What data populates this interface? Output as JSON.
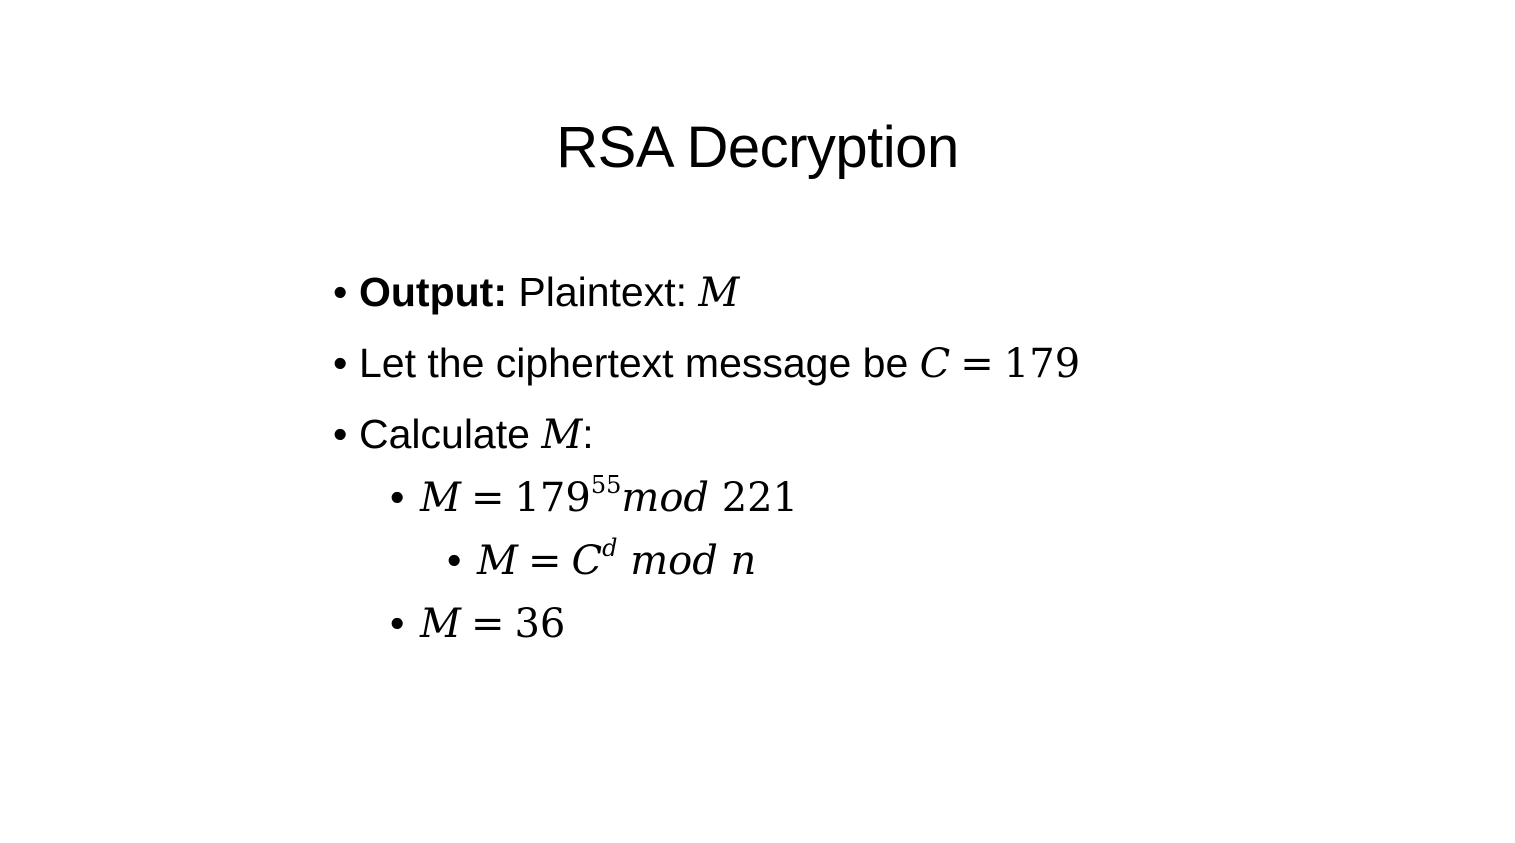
{
  "slide": {
    "title": "RSA Decryption",
    "bullets": {
      "output_label": "Output:",
      "output_text": " Plaintext: ",
      "output_var": "M",
      "cipher_text": "Let the ciphertext message be ",
      "cipher_var": "C",
      "cipher_eq": "=",
      "cipher_value": "179",
      "calc_text": "Calculate ",
      "calc_var": "M",
      "calc_colon": ":",
      "eq1_var": "M",
      "eq1_eq": "=",
      "eq1_base": "179",
      "eq1_exp": "55",
      "eq1_mod": "mod",
      "eq1_modulus": "221",
      "eq2_var": "M",
      "eq2_eq": "=",
      "eq2_base": "C",
      "eq2_exp": "d",
      "eq2_mod": "mod",
      "eq2_n": "n",
      "eq3_var": "M",
      "eq3_eq": "=",
      "eq3_value": "36"
    }
  }
}
